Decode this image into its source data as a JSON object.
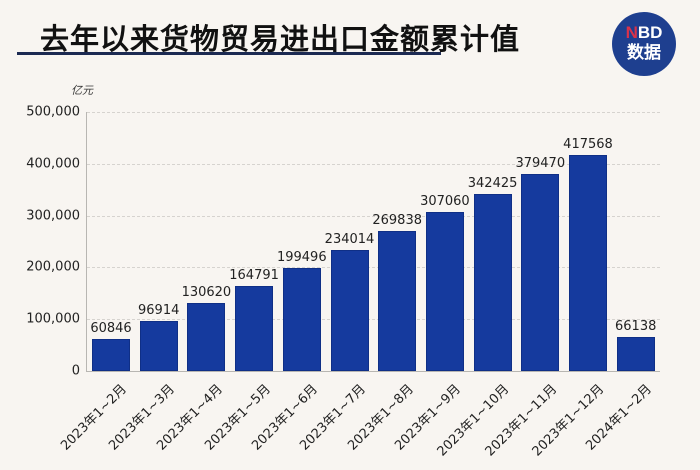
{
  "header": {
    "title": "去年以来货物贸易进出口金额累计值",
    "logo_prefix": "N",
    "logo_suffix": "BD",
    "logo_line2": "数据"
  },
  "colors": {
    "bar": "#153a9e",
    "logo_bg": "#1e3f8f",
    "logo_accent": "#d9324a"
  },
  "chart_data": {
    "type": "bar",
    "title": "去年以来货物贸易进出口金额累计值",
    "xlabel": "",
    "ylabel": "亿元",
    "ylim": [
      0,
      500000
    ],
    "yticks": [
      "500,000",
      "400,000",
      "300,000",
      "200,000",
      "100,000",
      "0"
    ],
    "grid": true,
    "legend": "none",
    "categories": [
      "2023年1~2月",
      "2023年1~3月",
      "2023年1~4月",
      "2023年1~5月",
      "2023年1~6月",
      "2023年1~7月",
      "2023年1~8月",
      "2023年1~9月",
      "2023年1~10月",
      "2023年1~11月",
      "2023年1~12月",
      "2024年1~2月"
    ],
    "values": [
      60846,
      96914,
      130620,
      164791,
      199496,
      234014,
      269838,
      307060,
      342425,
      379470,
      417568,
      66138
    ]
  }
}
